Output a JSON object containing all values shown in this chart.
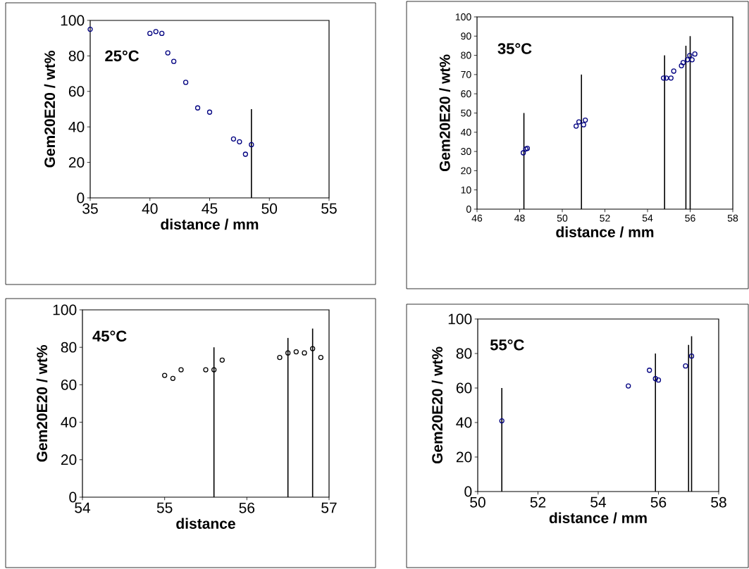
{
  "chart_data": [
    {
      "type": "scatter",
      "xlabel": "distance / mm",
      "ylabel": "Gem20E20 / wt%",
      "annotations": [
        "25°C"
      ],
      "xlim": [
        35,
        55
      ],
      "xticks": [
        35,
        40,
        45,
        50,
        55
      ],
      "ylim": [
        0,
        100
      ],
      "yticks": [
        0,
        20,
        40,
        60,
        80,
        100
      ],
      "marker": "circle",
      "series": [
        {
          "color": "#000080",
          "x": [
            35,
            40,
            40.5,
            41,
            41.5,
            42,
            43,
            44,
            45,
            47,
            47.5,
            48,
            48.5
          ],
          "values": [
            95,
            92.7,
            93.7,
            92.7,
            81.7,
            76.9,
            65.1,
            50.7,
            48.3,
            33.2,
            31.6,
            24.6,
            30
          ]
        },
        {
          "type": "bar",
          "color": "#000000",
          "x": [
            48.5
          ],
          "values": [
            50
          ]
        }
      ]
    },
    {
      "type": "scatter",
      "xlabel": "distance / mm",
      "ylabel": "Gem20E20 / wt%",
      "annotations": [
        "35°C"
      ],
      "xlim": [
        46,
        58
      ],
      "xticks": [
        46,
        48,
        50,
        52,
        54,
        56,
        58
      ],
      "ylim": [
        0,
        100
      ],
      "yticks": [
        0,
        10,
        20,
        30,
        40,
        50,
        60,
        70,
        80,
        90,
        100
      ],
      "marker": "circle",
      "series": [
        {
          "color": "#000080",
          "x": [
            48.17,
            48.29,
            48.36,
            50.65,
            50.78,
            51.0,
            51.08,
            54.75,
            54.88,
            55.1,
            55.23,
            55.59,
            55.67,
            55.87,
            55.98,
            56.09,
            56.22
          ],
          "values": [
            29.3,
            31.3,
            31.6,
            43.2,
            45.4,
            43.9,
            46.3,
            68.2,
            68.2,
            68.2,
            71.8,
            74.6,
            76.2,
            77.7,
            79.9,
            77.7,
            80.7
          ]
        },
        {
          "type": "bar",
          "color": "#000000",
          "x": [
            48.2,
            50.9,
            54.8,
            55.8,
            56
          ],
          "values": [
            50,
            70,
            80,
            85,
            90
          ]
        }
      ]
    },
    {
      "type": "scatter",
      "xlabel": "distance",
      "ylabel": "Gem20E20 / wt%",
      "annotations": [
        "45°C"
      ],
      "xlim": [
        54,
        57
      ],
      "xticks": [
        54,
        55,
        56,
        57
      ],
      "ylim": [
        0,
        100
      ],
      "yticks": [
        0,
        20,
        40,
        60,
        80,
        100
      ],
      "marker": "circle",
      "series": [
        {
          "color": "#000000",
          "x": [
            55.0,
            55.1,
            55.2,
            55.5,
            55.6,
            55.7,
            56.4,
            56.5,
            56.6,
            56.7,
            56.8,
            56.9
          ],
          "values": [
            65,
            63.4,
            68,
            68,
            68,
            73.2,
            74.6,
            77,
            77.6,
            77,
            79.3,
            74.6
          ]
        },
        {
          "type": "bar",
          "color": "#000000",
          "x": [
            55.6,
            56.5,
            56.8
          ],
          "values": [
            80,
            85,
            90
          ]
        }
      ]
    },
    {
      "type": "scatter",
      "xlabel": "distance / mm",
      "ylabel": "Gem20E20 / wt%",
      "annotations": [
        "55°C"
      ],
      "xlim": [
        50,
        58
      ],
      "xticks": [
        50,
        52,
        54,
        56,
        58
      ],
      "ylim": [
        0,
        100
      ],
      "yticks": [
        0,
        20,
        40,
        60,
        80,
        100
      ],
      "marker": "circle",
      "series": [
        {
          "color": "#000080",
          "x": [
            50.8,
            55.0,
            55.7,
            55.9,
            56.0,
            56.9,
            57.1
          ],
          "values": [
            41,
            61.2,
            70.3,
            65.4,
            64.6,
            72.8,
            78.5
          ]
        },
        {
          "type": "bar",
          "color": "#000000",
          "x": [
            50.8,
            55.9,
            57.0,
            57.1
          ],
          "values": [
            60,
            80,
            85,
            90
          ]
        }
      ]
    }
  ]
}
